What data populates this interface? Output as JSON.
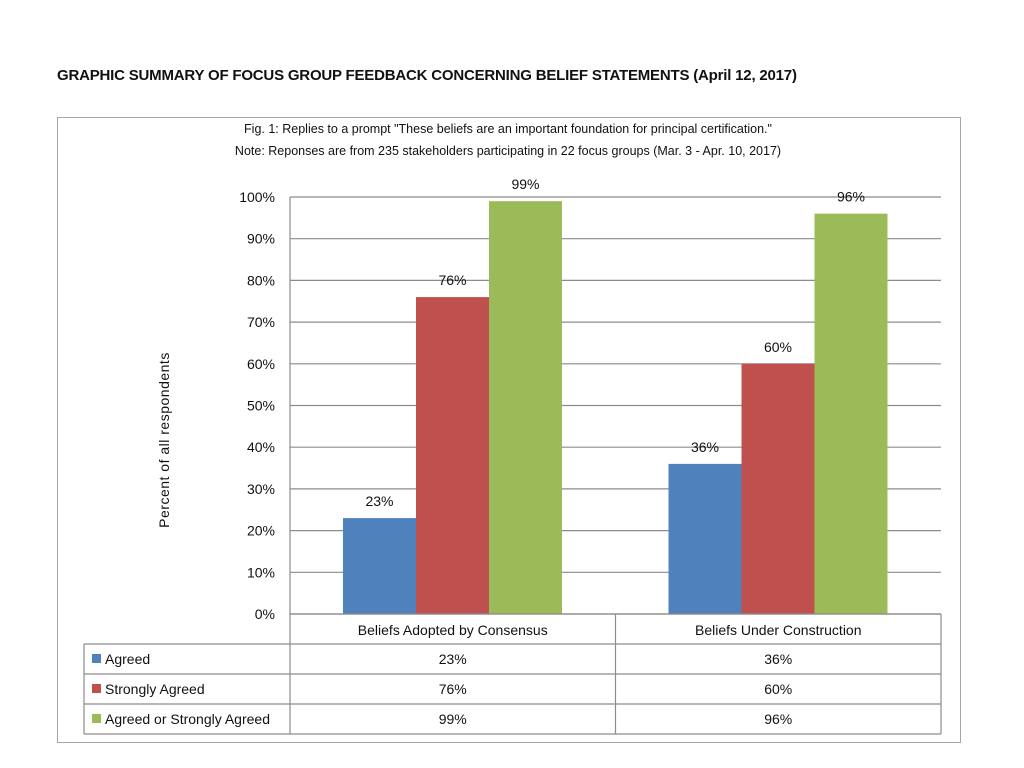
{
  "page": {
    "title": "GRAPHIC SUMMARY OF FOCUS GROUP FEEDBACK CONCERNING BELIEF STATEMENTS (April 12, 2017)"
  },
  "colors": {
    "agreed": "#4f81bd",
    "strongly_agreed": "#c0504d",
    "agreed_or_strongly": "#9bbb59",
    "grid": "#8c8c8c",
    "table_border": "#8c8c8c"
  },
  "chart_data": {
    "type": "bar",
    "title": "Fig. 1:  Replies to a prompt \"These beliefs are an important foundation for principal certification.\"",
    "subtitle": "Note:  Reponses are from 235 stakeholders participating  in 22 focus groups (Mar. 3 - Apr. 10, 2017)",
    "xlabel": "",
    "ylabel": "Percent of all respondents",
    "ylim": [
      0,
      100
    ],
    "yticks": [
      0,
      10,
      20,
      30,
      40,
      50,
      60,
      70,
      80,
      90,
      100
    ],
    "ytick_labels": [
      "0%",
      "10%",
      "20%",
      "30%",
      "40%",
      "50%",
      "60%",
      "70%",
      "80%",
      "90%",
      "100%"
    ],
    "grid": true,
    "legend": "data-table",
    "categories": [
      "Beliefs Adopted by Consensus",
      "Beliefs Under Construction"
    ],
    "series": [
      {
        "name": "Agreed",
        "values": [
          23,
          36
        ],
        "labels": [
          "23%",
          "36%"
        ],
        "color_key": "agreed"
      },
      {
        "name": "Strongly Agreed",
        "values": [
          76,
          60
        ],
        "labels": [
          "76%",
          "60%"
        ],
        "color_key": "strongly_agreed"
      },
      {
        "name": "Agreed or Strongly Agreed",
        "values": [
          99,
          96
        ],
        "labels": [
          "99%",
          "96%"
        ],
        "color_key": "agreed_or_strongly"
      }
    ]
  }
}
